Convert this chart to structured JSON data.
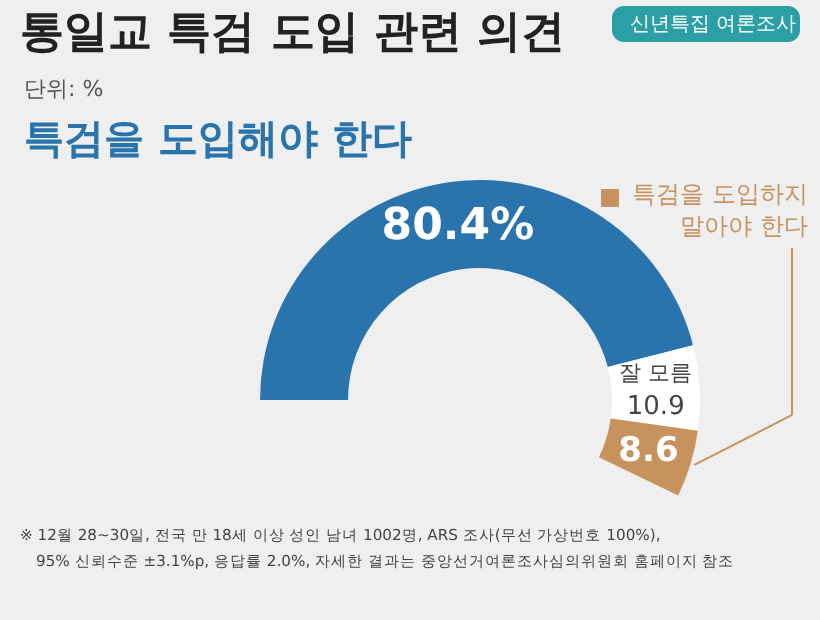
{
  "chart_data": {
    "type": "donut",
    "title": "통일교 특검 도입 관련 의견",
    "categories": [
      "특검을 도입해야 한다",
      "잘 모름",
      "특검을 도입하지 말아야 한다"
    ],
    "values": [
      80.4,
      10.9,
      8.6
    ],
    "colors": [
      "#2a74ad",
      "#ffffff",
      "#c8925e"
    ],
    "value_labels": [
      "80.4%",
      "10.9",
      "8.6"
    ],
    "annotations": [
      "단위: %",
      "신년특집 여론조사",
      "※ 12월 28~30일, 전국 만 18세 이상 성인 남녀 1002명, ARS 조사(무선 가상번호 100%),",
      "95% 신뢰수준 ±3.1%p, 응답률 2.0%, 자세한 결과는 중앙선거여론조사심의위원회 홈페이지 참조"
    ]
  }
}
